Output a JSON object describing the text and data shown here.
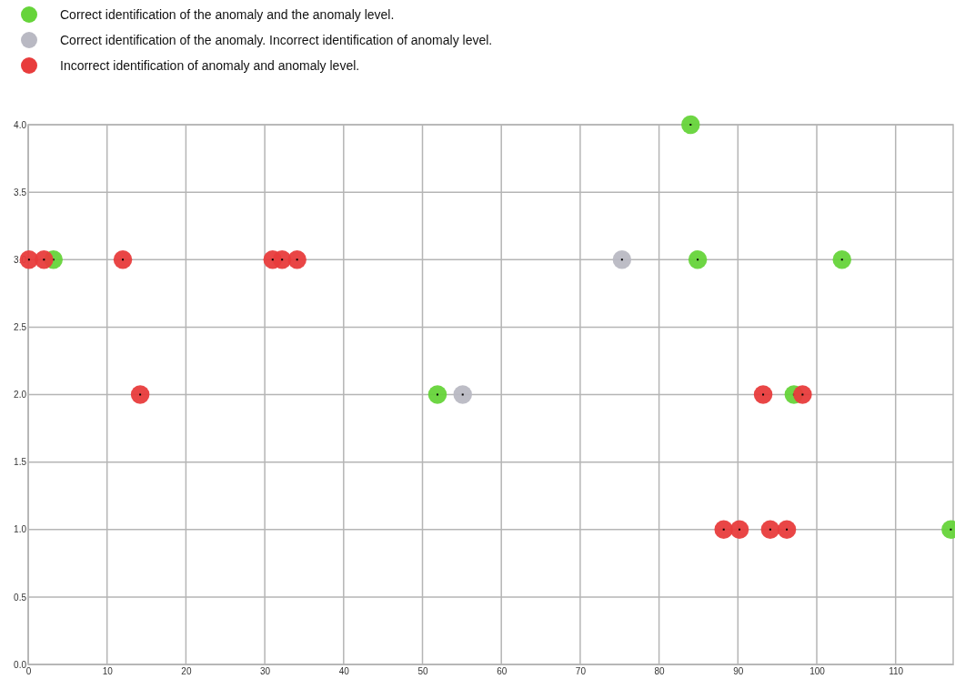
{
  "chart_data": {
    "type": "scatter",
    "xlim": [
      0,
      117.3
    ],
    "ylim": [
      0,
      4
    ],
    "xticks": [
      0,
      10,
      20,
      30,
      40,
      50,
      60,
      70,
      80,
      90,
      100,
      110
    ],
    "yticks": [
      {
        "value": 0,
        "label": "0.0"
      },
      0.5,
      {
        "value": 1,
        "label": "1.0"
      },
      1.5,
      {
        "value": 2,
        "label": "2.0"
      },
      2.5,
      {
        "value": 3,
        "label": "3.0"
      },
      3.5,
      {
        "value": 4,
        "label": "4.0"
      }
    ],
    "grid": true,
    "legend": "top left",
    "marker": "circle",
    "series": [
      {
        "name": "Correct identification of the anomaly and the anomaly level.",
        "color": "#66d43a",
        "x": [
          3.2,
          51.9,
          84,
          84.9,
          97.1,
          103.2,
          117
        ],
        "values": [
          3,
          2,
          4,
          3,
          2,
          3,
          1
        ]
      },
      {
        "name": "Correct identification of the anomaly. Incorrect identification of anomaly level.",
        "color": "#b9b9c3",
        "x": [
          55.1,
          75.3
        ],
        "values": [
          2,
          3
        ]
      },
      {
        "name": "Incorrect identification of anomaly and anomaly level.",
        "color": "#e83c3c",
        "x": [
          0.1,
          2,
          12,
          14.2,
          31,
          32.2,
          34.1,
          88.2,
          90.2,
          93.2,
          94.1,
          96.2,
          98.2
        ],
        "values": [
          3,
          3,
          3,
          2,
          3,
          3,
          3,
          1,
          1,
          2,
          1,
          1,
          2
        ]
      }
    ]
  }
}
